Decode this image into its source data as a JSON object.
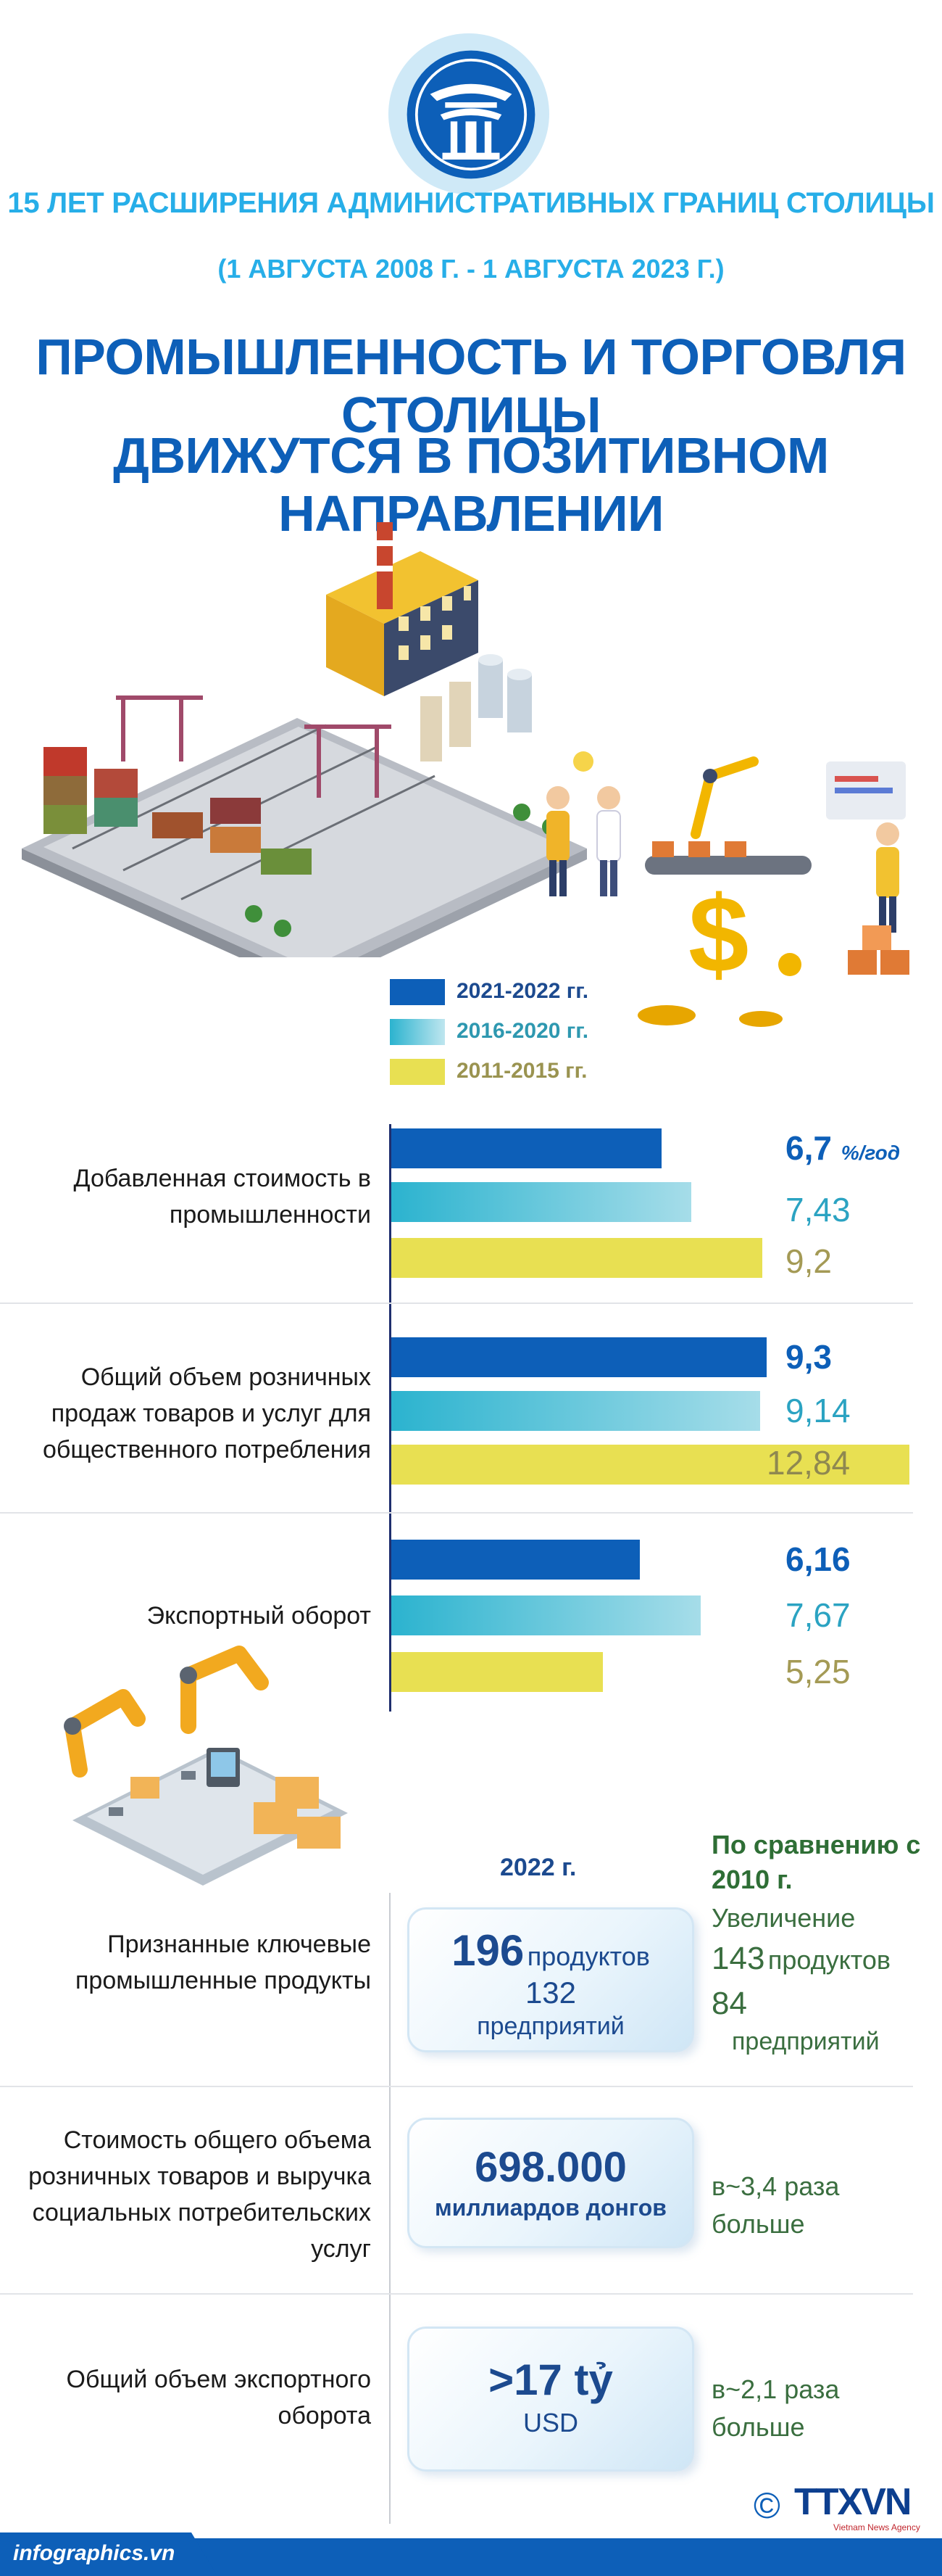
{
  "header": {
    "line1": "15 ЛЕТ РАСШИРЕНИЯ АДМИНИСТРАТИВНЫХ ГРАНИЦ СТОЛИЦЫ",
    "line2": "(1 АВГУСТА 2008 Г. - 1 АВГУСТА 2023 Г.)",
    "title_line1": "ПРОМЫШЛЕННОСТЬ И ТОРГОВЛЯ СТОЛИЦЫ",
    "title_line2": "ДВИЖУТСЯ В ПОЗИТИВНОМ НАПРАВЛЕНИИ"
  },
  "colors": {
    "title_blue": "#0d5fb8",
    "header_light_blue": "#27aee8",
    "series_2021_2022": "#0d5fb8",
    "series_2016_2020": "#2bb3cf",
    "series_2011_2015": "#e8e052"
  },
  "chart_data": {
    "type": "bar",
    "orientation": "horizontal",
    "legend": [
      "2021-2022 гг.",
      "2016-2020  гг.",
      "2011-2015 гг."
    ],
    "categories": [
      "Добавленная стоимость в промышленности",
      "Общий объем розничных продаж товаров и услуг для общественного потребления",
      "Экспортный оборот"
    ],
    "series": [
      {
        "name": "2021-2022 гг.",
        "values": [
          6.7,
          9.3,
          6.16
        ],
        "labels": [
          "6,7",
          "9,3",
          "6,16"
        ]
      },
      {
        "name": "2016-2020  гг.",
        "values": [
          7.43,
          9.14,
          7.67
        ],
        "labels": [
          "7,43",
          "9,14",
          "7,67"
        ]
      },
      {
        "name": "2011-2015 гг.",
        "values": [
          9.2,
          12.84,
          5.25
        ],
        "labels": [
          "9,2",
          "12,84",
          "5,25"
        ]
      }
    ],
    "unit_label": "%/год",
    "xlim": [
      0,
      13
    ]
  },
  "table": {
    "col_2022": "2022 г.",
    "col_compare": "По сравнению с 2010 г.",
    "rows": [
      {
        "label": "Признанные ключевые промышленные продукты",
        "value_main": "196",
        "value_main_unit": "продуктов",
        "value_second": "132",
        "value_second_unit": "предприятий",
        "compare_title": "Увеличение",
        "compare_line1_num": "143",
        "compare_line1_unit": "продуктов",
        "compare_line2_num": "84",
        "compare_line2_unit": "предприятий"
      },
      {
        "label": "Стоимость общего объема розничных товаров и выручка социальных потребительских услуг",
        "value_main": "698.000",
        "value_unit": "миллиардов донгов",
        "compare_line1": "в~3,4 раза",
        "compare_line2": "больше"
      },
      {
        "label": "Общий объем экспортного оборота",
        "value_main": ">17 tỷ",
        "value_unit": "USD",
        "compare_line1": "в~2,1 раза",
        "compare_line2": "больше"
      }
    ]
  },
  "footer": {
    "site": "infographics.vn",
    "copyright": "©",
    "brand": "TTXVN",
    "brand_sub": "Vietnam News Agency"
  }
}
